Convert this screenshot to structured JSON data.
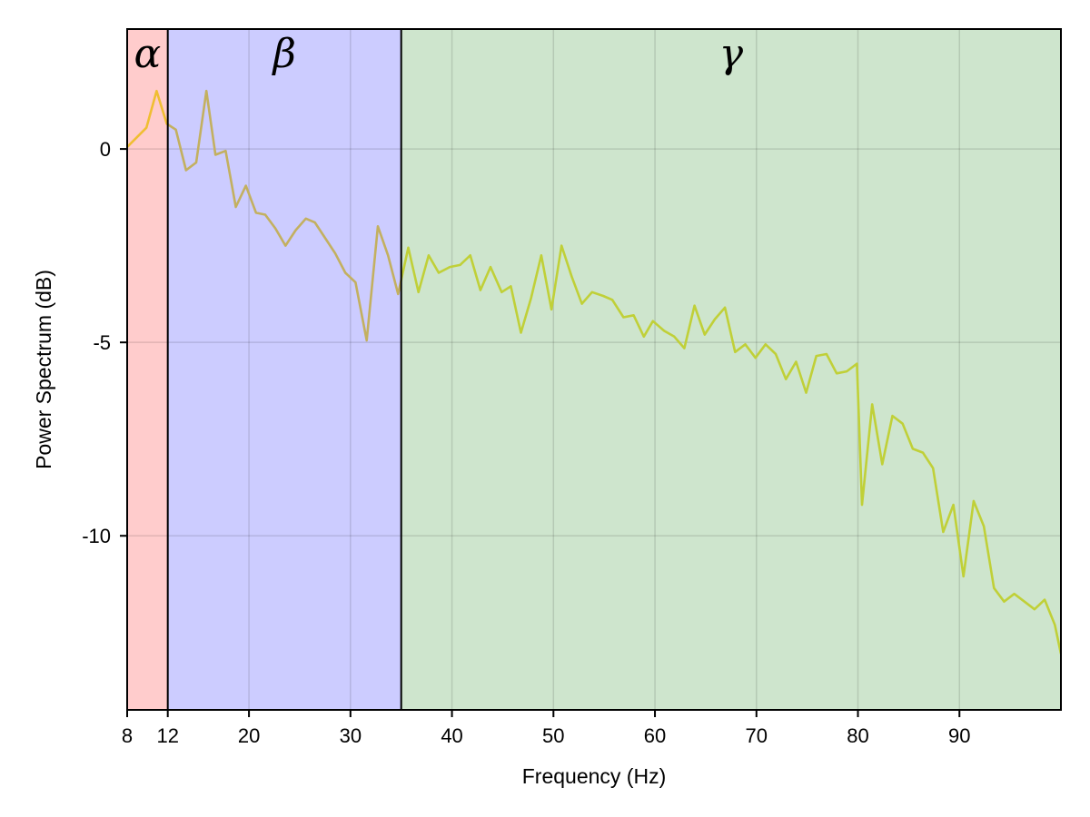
{
  "chart_data": {
    "type": "line",
    "title": "",
    "xlabel": "Frequency (Hz)",
    "ylabel": "Power Spectrum (dB)",
    "xlim": [
      8,
      100
    ],
    "ylim": [
      -14.5,
      3.1
    ],
    "grid": true,
    "x_ticks": [
      8,
      12,
      20,
      30,
      40,
      50,
      60,
      70,
      80,
      90
    ],
    "x_tick_labels": [
      "8",
      "12",
      "20",
      "30",
      "40",
      "50",
      "60",
      "70",
      "80",
      "90"
    ],
    "y_ticks": [
      0,
      -5,
      -10
    ],
    "y_tick_labels": [
      "0",
      "-5",
      "-10"
    ],
    "bands": [
      {
        "label": "α",
        "from": 8,
        "to": 12,
        "color": "#ffcccc"
      },
      {
        "label": "β",
        "from": 12,
        "to": 35,
        "color": "#ccccff"
      },
      {
        "label": "γ",
        "from": 35,
        "to": 100,
        "color": "#cee5cd"
      }
    ],
    "line_color": "#c8d036",
    "series": [
      {
        "x": [
          8.0,
          9.9,
          10.9,
          11.9,
          12.8,
          13.8,
          14.8,
          15.8,
          16.7,
          17.7,
          18.7,
          19.7,
          20.7,
          21.6,
          22.6,
          23.6,
          24.6,
          25.6,
          26.5,
          27.5,
          28.5,
          29.5,
          30.5,
          31.6,
          32.7,
          33.7,
          34.7,
          35.7,
          36.7,
          37.7,
          38.7,
          39.8,
          40.8,
          41.8,
          42.8,
          43.8,
          44.9,
          45.8,
          46.8,
          47.8,
          48.8,
          49.8,
          50.8,
          51.8,
          52.8,
          53.8,
          54.9,
          55.8,
          56.9,
          57.9,
          58.9,
          59.8,
          60.9,
          61.9,
          62.9,
          63.9,
          64.9,
          65.9,
          66.9,
          67.9,
          68.9,
          69.9,
          70.9,
          71.9,
          72.9,
          73.9,
          74.9,
          75.9,
          76.9,
          77.9,
          78.9,
          79.9,
          80.4,
          81.4,
          82.4,
          83.4,
          84.4,
          85.4,
          86.4,
          87.4,
          88.4,
          89.4,
          90.4,
          91.4,
          92.4,
          93.4,
          94.4,
          95.4,
          96.4,
          97.4,
          98.4,
          99.4,
          100.0
        ],
        "y": [
          0.05,
          0.55,
          1.5,
          0.65,
          0.5,
          -0.55,
          -0.35,
          1.5,
          -0.15,
          -0.05,
          -1.5,
          -0.95,
          -1.65,
          -1.7,
          -2.05,
          -2.5,
          -2.1,
          -1.8,
          -1.9,
          -2.3,
          -2.7,
          -3.2,
          -3.45,
          -4.95,
          -2.0,
          -2.75,
          -3.75,
          -2.55,
          -3.7,
          -2.75,
          -3.2,
          -3.05,
          -3.0,
          -2.75,
          -3.65,
          -3.05,
          -3.7,
          -3.55,
          -4.75,
          -3.85,
          -2.75,
          -4.15,
          -2.5,
          -3.3,
          -4.0,
          -3.7,
          -3.8,
          -3.9,
          -4.35,
          -4.3,
          -4.85,
          -4.45,
          -4.7,
          -4.85,
          -5.15,
          -4.05,
          -4.8,
          -4.4,
          -4.1,
          -5.25,
          -5.05,
          -5.4,
          -5.05,
          -5.3,
          -5.95,
          -5.5,
          -6.3,
          -5.35,
          -5.3,
          -5.8,
          -5.75,
          -5.55,
          -9.2,
          -6.6,
          -8.15,
          -6.9,
          -7.1,
          -7.75,
          -7.85,
          -8.25,
          -9.9,
          -9.2,
          -11.05,
          -9.1,
          -9.75,
          -11.35,
          -11.7,
          -11.5,
          -11.7,
          -11.9,
          -11.65,
          -12.3,
          -13.05
        ]
      }
    ]
  }
}
